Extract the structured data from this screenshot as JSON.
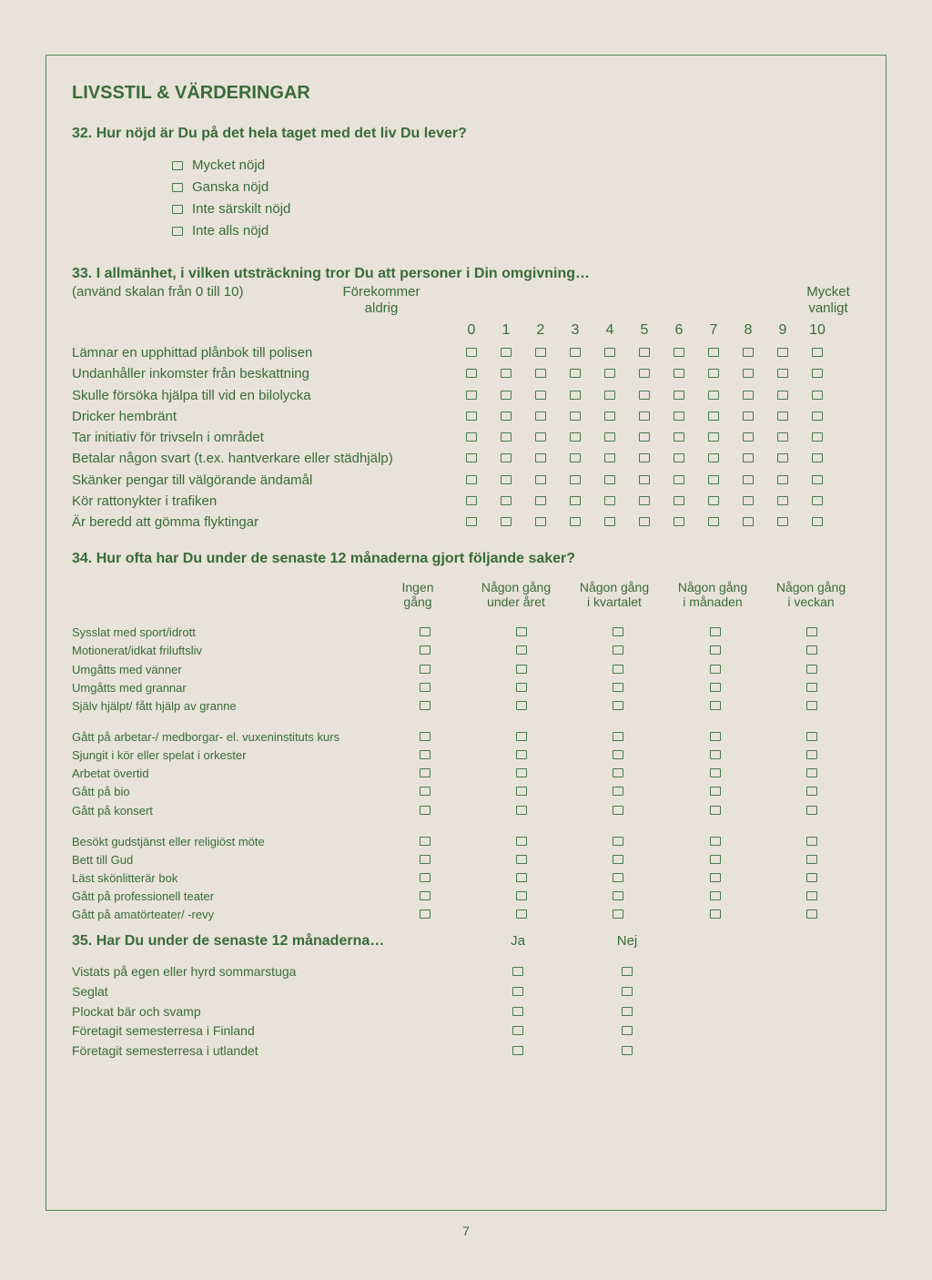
{
  "title": "LIVSSTIL & VÄRDERINGAR",
  "q32": {
    "heading": "32. Hur nöjd är Du på det hela taget med det liv Du lever?",
    "options": [
      "Mycket nöjd",
      "Ganska nöjd",
      "Inte särskilt nöjd",
      "Inte alls nöjd"
    ]
  },
  "q33": {
    "heading": "33. I allmänhet, i vilken utsträckning tror Du att personer i Din omgivning…",
    "sub": "(använd skalan från 0 till 10)",
    "anchor_left": "Förekommer aldrig",
    "anchor_right": "Mycket vanligt",
    "scale": [
      "0",
      "1",
      "2",
      "3",
      "4",
      "5",
      "6",
      "7",
      "8",
      "9",
      "10"
    ],
    "rows": [
      "Lämnar en upphittad plånbok till polisen",
      "Undanhåller inkomster från beskattning",
      "Skulle försöka hjälpa till vid en bilolycka",
      "Dricker hembränt",
      "Tar initiativ för trivseln i området",
      "Betalar någon svart (t.ex. hantverkare eller städhjälp)",
      "Skänker pengar till välgörande ändamål",
      "Kör rattonykter i trafiken",
      "Är beredd att gömma flyktingar"
    ]
  },
  "q34": {
    "heading": "34. Hur ofta har Du under de senaste 12 månaderna gjort följande saker?",
    "columns": [
      "Ingen gång",
      "Någon gång under året",
      "Någon gång i kvartalet",
      "Någon gång i månaden",
      "Någon gång i veckan"
    ],
    "groups": [
      [
        "Sysslat med sport/idrott",
        "Motionerat/idkat friluftsliv",
        "Umgåtts med vänner",
        "Umgåtts med grannar",
        "Själv hjälpt/ fått hjälp av granne"
      ],
      [
        "Gått på arbetar-/ medborgar- el. vuxeninstituts kurs",
        "Sjungit i kör eller spelat i orkester",
        "Arbetat övertid",
        "Gått på bio",
        "Gått på konsert"
      ],
      [
        "Besökt gudstjänst eller religiöst möte",
        "Bett till Gud",
        "Läst skönlitterär bok",
        "Gått på professionell teater",
        "Gått på amatörteater/ -revy"
      ]
    ]
  },
  "q35": {
    "heading": "35. Har Du under de senaste 12 månaderna…",
    "columns": [
      "Ja",
      "Nej"
    ],
    "rows": [
      "Vistats på egen eller hyrd sommarstuga",
      "Seglat",
      "Plockat bär och svamp",
      "Företagit semesterresa i Finland",
      "Företagit semesterresa i utlandet"
    ]
  },
  "page_number": "7"
}
